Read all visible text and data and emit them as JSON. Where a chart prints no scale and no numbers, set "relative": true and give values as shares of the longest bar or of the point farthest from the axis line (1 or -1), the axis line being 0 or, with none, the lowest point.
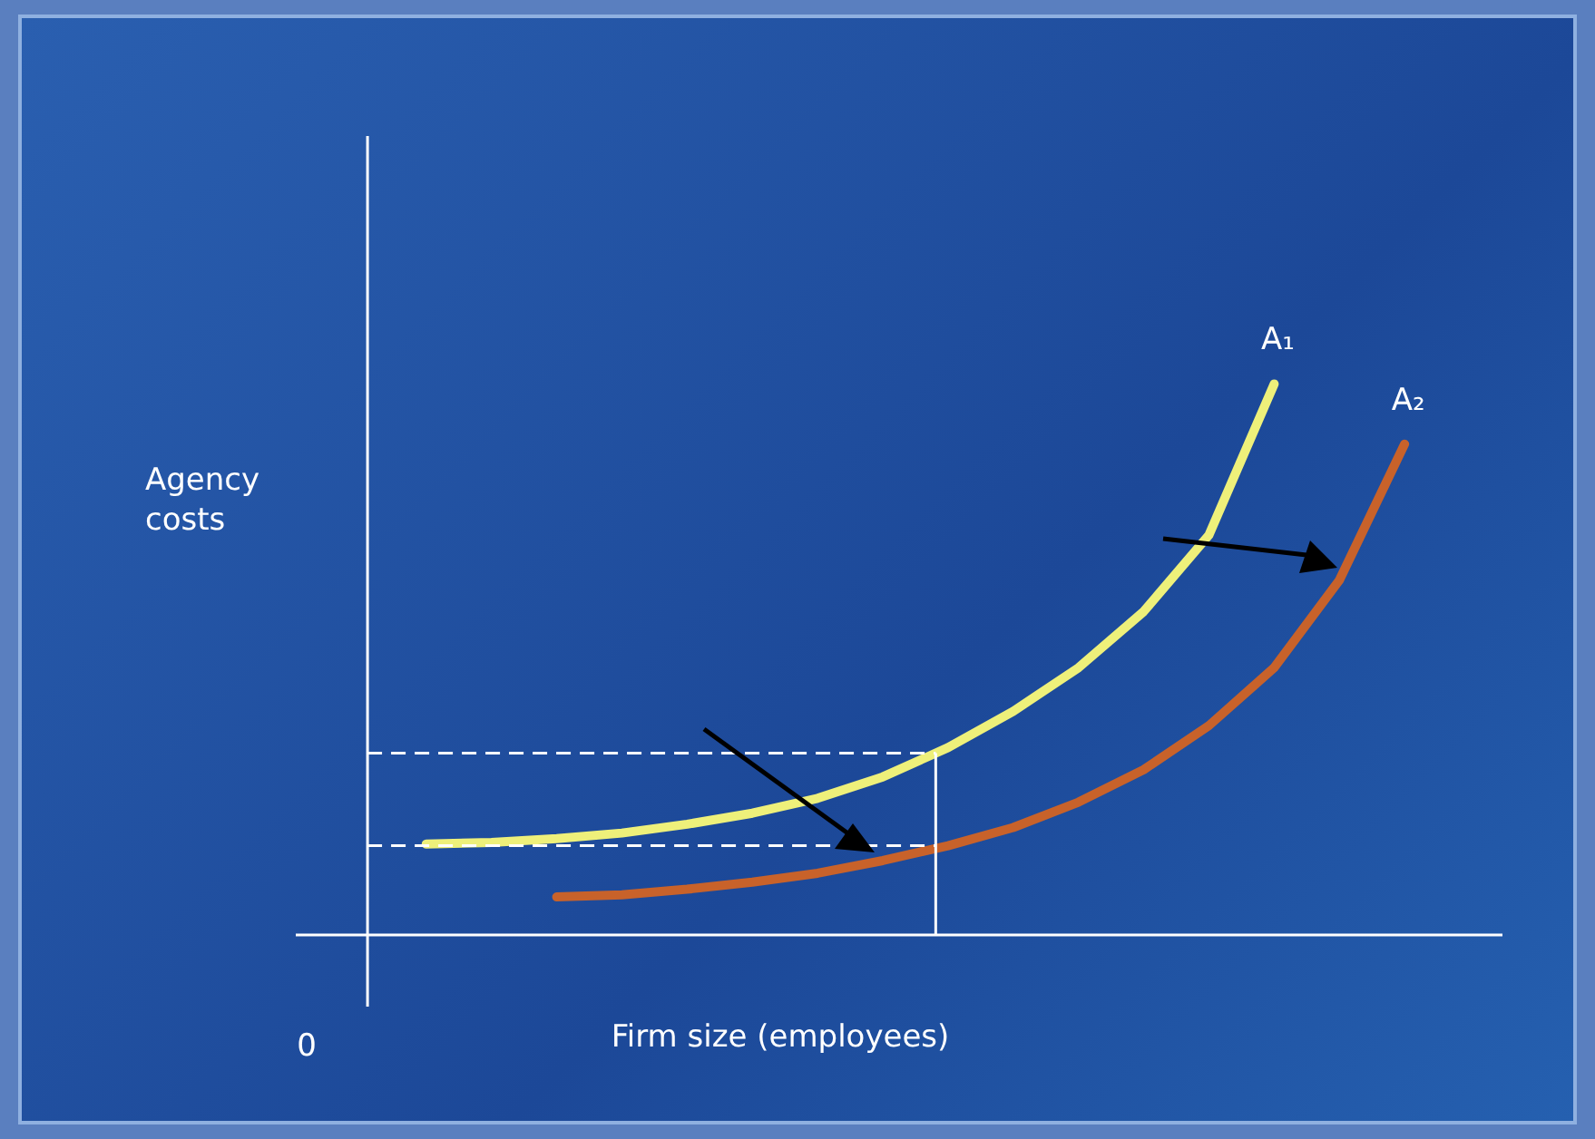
{
  "chart_data": {
    "type": "line",
    "relative": true,
    "xlabel": "Firm size (employees)",
    "ylabel": "Agency costs",
    "annotations": [
      "0"
    ],
    "categories": [
      null,
      null,
      null,
      null,
      null,
      null,
      null,
      null,
      null,
      null,
      null,
      null,
      null,
      null,
      null,
      null
    ],
    "series": [
      {
        "name": "A₁",
        "color": "#eef07a",
        "values": [
          0.165,
          0.168,
          0.175,
          0.185,
          0.201,
          0.221,
          0.248,
          0.287,
          0.34,
          0.406,
          0.485,
          0.587,
          0.726,
          1.0,
          null,
          null
        ]
      },
      {
        "name": "A₂",
        "color": "#c8622a",
        "values": [
          null,
          null,
          0.069,
          0.073,
          0.083,
          0.096,
          0.112,
          0.135,
          0.162,
          0.195,
          0.241,
          0.3,
          0.38,
          0.485,
          0.644,
          0.891
        ]
      }
    ],
    "ref_lines": [
      {
        "axis": "y",
        "value": 0.33,
        "line_style": "dashed",
        "color": "#ffffff"
      },
      {
        "axis": "y",
        "value": 0.162,
        "line_style": "dashed",
        "color": "#ffffff"
      }
    ]
  }
}
